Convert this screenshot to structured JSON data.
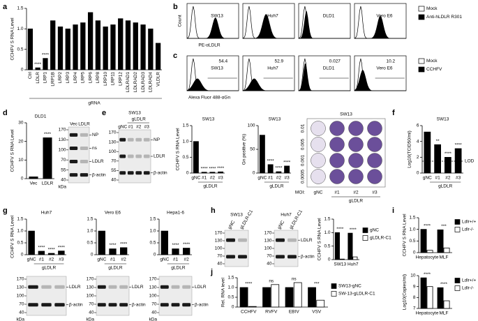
{
  "panel_labels": [
    "a",
    "b",
    "c",
    "d",
    "e",
    "f",
    "g",
    "h",
    "i",
    "j"
  ],
  "chart_data": [
    {
      "type": "bar",
      "ylabel": "CCHFV S RNA Level",
      "xlabel": "gRNA",
      "categories": [
        "Ctrl",
        "LDLR",
        "LRP1",
        "LRP1B",
        "LRP2",
        "LRP3",
        "LRP4",
        "LRP5",
        "LRP6",
        "LRP8",
        "LRP10",
        "LRP11",
        "LRP12",
        "LDLRAD1",
        "LDLRAD2",
        "LDLRAD3",
        "LDLRAD4",
        "VLDLR"
      ],
      "values": [
        1.0,
        0.05,
        0.28,
        1.2,
        1.05,
        1.0,
        1.1,
        1.15,
        1.4,
        1.2,
        1.05,
        1.1,
        1.25,
        1.2,
        1.15,
        1.1,
        1.0,
        0.65
      ],
      "significance": [
        null,
        "****",
        "****",
        null,
        null,
        null,
        null,
        null,
        null,
        null,
        null,
        null,
        null,
        null,
        null,
        null,
        null,
        null
      ],
      "color": "#000000",
      "ylim": [
        0,
        1.5
      ],
      "yticks": [
        0,
        0.5,
        {
          "value": 1,
          "label": "1.0"
        },
        1.5
      ]
    },
    {
      "type": "bar",
      "title": "DLD1",
      "ylabel": "CCHFV S RNA Level",
      "categories": [
        "Vec",
        "LDLR"
      ],
      "values": [
        1,
        22
      ],
      "significance": [
        null,
        "****"
      ],
      "color": "#000000",
      "ylim": [
        0,
        30
      ],
      "yticks": [
        0,
        10,
        20,
        30
      ]
    },
    {
      "type": "bar",
      "title": "SW13",
      "ylabel": "CCHFV S RNA Level",
      "categories": [
        "gNC",
        "#1",
        "#2",
        "#3"
      ],
      "group_label": "gLDLR",
      "values": [
        1.0,
        0.03,
        0.03,
        0.04
      ],
      "significance": [
        null,
        "****",
        "****",
        "****"
      ],
      "color": "#000000",
      "ylim": [
        0,
        1.5
      ],
      "yticks": [
        0,
        0.5,
        {
          "value": 1,
          "label": "1.0"
        },
        1.5
      ]
    },
    {
      "type": "bar",
      "title": "SW13",
      "ylabel": "Gn positive (%)",
      "categories": [
        "gNC",
        "#1",
        "#2",
        "#3"
      ],
      "group_label": "gLDLR",
      "values": [
        80,
        18,
        3,
        15
      ],
      "significance": [
        null,
        "****",
        "****",
        "****"
      ],
      "color": "#000000",
      "ylim": [
        0,
        100
      ],
      "yticks": [
        0,
        50,
        100
      ]
    },
    {
      "type": "bar",
      "title": "SW13",
      "ylabel": "Log10(TCID50/ml)",
      "categories": [
        "gNC",
        "#1",
        "#2",
        "#3"
      ],
      "group_label": "gLDLR",
      "values": [
        5.2,
        3.6,
        2.0,
        3.1
      ],
      "significance": [
        null,
        "**",
        "****",
        "****"
      ],
      "color": "#000000",
      "lod": 1.5,
      "lod_label": "LOD",
      "ylim": [
        0,
        6
      ],
      "yticks": [
        0,
        2,
        4,
        6
      ]
    },
    {
      "type": "bar",
      "title": "Huh7",
      "ylabel": "CCHFV S RNA Level",
      "categories": [
        "gNC",
        "#1",
        "#2",
        "#3"
      ],
      "group_label": "gLDLR",
      "values": [
        1.0,
        0.15,
        0.06,
        0.16
      ],
      "significance": [
        null,
        "****",
        "****",
        "****"
      ],
      "color": "#000000",
      "ylim": [
        0,
        1.5
      ],
      "yticks": [
        0,
        0.5,
        {
          "value": 1,
          "label": "1.0"
        },
        1.5
      ]
    },
    {
      "type": "bar",
      "title": "Vero E6",
      "categories": [
        "gNC",
        "#1",
        "#2"
      ],
      "group_label": "gLDLR",
      "values": [
        1.0,
        0.25,
        0.3
      ],
      "significance": [
        null,
        "****",
        "****"
      ],
      "color": "#000000",
      "ylim": [
        0,
        1.5
      ],
      "yticks": [
        0,
        0.5,
        {
          "value": 1,
          "label": "1.0"
        },
        1.5
      ]
    },
    {
      "type": "bar",
      "title": "Hepa1-6",
      "categories": [
        "gNC",
        "#1",
        "#2"
      ],
      "group_label": "gLDLR",
      "values": [
        1.0,
        0.25,
        0.28
      ],
      "significance": [
        null,
        "****",
        "****"
      ],
      "color": "#000000",
      "ylim": [
        0,
        1.5
      ],
      "yticks": [
        0,
        0.5,
        {
          "value": 1,
          "label": "1.0"
        },
        1.5
      ]
    },
    {
      "type": "grouped_bar",
      "ylabel": "CCHFV S RNA Level",
      "categories": [
        "SW13",
        "Huh7"
      ],
      "series": [
        {
          "name": "gNC",
          "color": "#000000",
          "values": [
            1.0,
            0.98
          ]
        },
        {
          "name": "gLDLR-C1",
          "color": "#ffffff",
          "values": [
            0.02,
            0.1
          ]
        }
      ],
      "significance": [
        "****",
        "****"
      ],
      "ylim": [
        0,
        1.5
      ],
      "yticks": [
        0,
        0.5,
        {
          "value": 1,
          "label": "1.0"
        },
        1.5
      ]
    },
    {
      "type": "grouped_bar",
      "ylabel": "CCHFV S RNA Level",
      "categories": [
        "Hepatocyte",
        "MLF"
      ],
      "series": [
        {
          "name": "Ldlr+/+",
          "color": "#000000",
          "values": [
            1.0,
            0.98
          ]
        },
        {
          "name": "Ldlr-/-",
          "color": "#ffffff",
          "values": [
            0.1,
            0.2
          ]
        }
      ],
      "significance": [
        "****",
        "***"
      ],
      "ylim": [
        0,
        1.5
      ],
      "yticks": [
        0,
        0.5,
        {
          "value": 1,
          "label": "1.0"
        },
        1.5
      ]
    },
    {
      "type": "grouped_bar",
      "ylabel": "Log10(Copies/ml)",
      "categories": [
        "Hepatocyte",
        "MLF"
      ],
      "series": [
        {
          "name": "Ldlr+/+",
          "color": "#000000",
          "values": [
            9.8,
            8.9
          ]
        },
        {
          "name": "Ldlr-/-",
          "color": "#ffffff",
          "values": [
            9.0,
            7.7
          ]
        }
      ],
      "significance": [
        "****",
        "****"
      ],
      "ylim": [
        7,
        10
      ],
      "yticks": [
        7,
        8,
        9,
        10
      ]
    },
    {
      "type": "grouped_bar",
      "ylabel": "Rel. RNA level",
      "categories": [
        "CCHFV",
        "RVFV",
        "EBIV",
        "VSV"
      ],
      "series": [
        {
          "name": "SW13-gNC",
          "color": "#000000",
          "values": [
            1,
            1,
            1,
            1
          ]
        },
        {
          "name": "SW-13-gLDLR-C1",
          "color": "#ffffff",
          "values": [
            0.03,
            1.15,
            1.25,
            0.35
          ]
        }
      ],
      "significance": [
        "****",
        "ns",
        "ns",
        "***"
      ],
      "ylim": [
        0,
        1.5
      ],
      "yticks": [
        0,
        0.5,
        {
          "value": 1,
          "label": "1.0"
        },
        1.5
      ]
    }
  ],
  "flow_b": {
    "cells": [
      "SW13",
      "Huh7",
      "DLD1",
      "Vero E6"
    ],
    "ylabel": "Count",
    "xlabel": "PE-αLDLR",
    "legend": [
      "Mock",
      "Anti-hLDLR R301"
    ]
  },
  "flow_c": {
    "cells": [
      "SW13",
      "Huh7",
      "DLD1",
      "Vero E6"
    ],
    "values": [
      54.4,
      52.9,
      0.027,
      10.2
    ],
    "xlabel": "Alexa Fluor 488-αGn",
    "legend": [
      "Mock",
      "CCHFV"
    ]
  },
  "blots": [
    {
      "lanes": [
        "Vec",
        "LDLR"
      ],
      "bands": [
        "NP",
        "ns",
        "LDLR",
        "β-actin"
      ],
      "markers": [
        170,
        130,
        100,
        70,
        55,
        40
      ],
      "kda_label": "kDa"
    },
    {
      "title": "SW13",
      "lanes": [
        "gNC",
        "#1",
        "#2",
        "#3"
      ],
      "group_label": "gLDLR",
      "bands": [
        "NP",
        "LDLR",
        "β-actin"
      ],
      "markers": [
        170,
        130,
        100,
        70,
        55,
        40
      ]
    },
    {
      "lanes": [],
      "bands": [
        "LDLR",
        "β-actin"
      ],
      "markers": [
        170,
        130,
        100,
        70,
        40
      ],
      "kda_label": "kDa"
    },
    {
      "lanes": [],
      "bands": [
        "LDLR",
        "β-actin"
      ],
      "markers": [
        170,
        130,
        100,
        70,
        40
      ],
      "kda_label": "kDa"
    },
    {
      "lanes": [],
      "bands": [
        "LDLR",
        "β-actin"
      ],
      "markers": [
        170,
        130,
        100,
        70,
        40
      ],
      "kda_label": "kDa"
    },
    {
      "title": "SW13",
      "lanes": [
        "gNC",
        "gLDLR-C1"
      ],
      "markers": [
        170,
        130,
        100,
        70,
        40
      ]
    },
    {
      "title": "Huh7",
      "lanes": [
        "gNC",
        "gLDLR-C1"
      ],
      "bands": [
        "LDLR",
        "β-actin"
      ],
      "markers": [
        170,
        130,
        100,
        70,
        40
      ]
    }
  ],
  "plate": {
    "title": "SW13",
    "moi_label": "MOI:",
    "moi": [
      0.01,
      0.005,
      0.001,
      0.0005
    ],
    "columns": [
      "gNC",
      "#1",
      "#2",
      "#3"
    ],
    "group_label": "gLDLR"
  }
}
